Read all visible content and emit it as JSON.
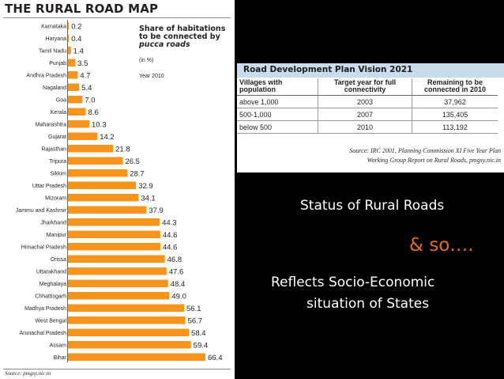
{
  "header": {
    "title": "THE RURAL ROAD MAP",
    "legend_lines": [
      "Share of habitations",
      "to be connected by",
      "pucca roads"
    ],
    "unit": "(in %)",
    "year": "Year 2010",
    "source": "Source: pmgsy.nic.in"
  },
  "colors": {
    "bar": "#f7941d",
    "panel": "#ffffff",
    "background": "#000000",
    "accent": "#e46c0a",
    "table_header": "#c9dcee"
  },
  "chart_data": {
    "type": "bar",
    "orientation": "horizontal",
    "title": "THE RURAL ROAD MAP",
    "subtitle": "Share of habitations to be connected by pucca roads (in %) Year 2010",
    "xlabel": "",
    "ylabel": "",
    "xlim": [
      0,
      66.4
    ],
    "grid": false,
    "categories": [
      "Karnataka",
      "Haryana",
      "Tamil Nadu",
      "Punjab",
      "Andhra Pradesh",
      "Nagaland",
      "Goa",
      "Kerala",
      "Maharashtra",
      "Gujarat",
      "Rajasthan",
      "Tripura",
      "Sikkim",
      "Uttar Pradesh",
      "Mizoram",
      "Jammu and Kashmir",
      "Jharkhand",
      "Manipur",
      "Himachal Pradesh",
      "Orissa",
      "Uttarakhand",
      "Meghalaya",
      "Chhattisgarh",
      "Madhya Pradesh",
      "West Bengal",
      "Arunachal Pradesh",
      "Assam",
      "Bihar"
    ],
    "values": [
      0.2,
      0.4,
      1.4,
      3.5,
      4.7,
      5.4,
      7.0,
      8.6,
      10.3,
      14.2,
      21.8,
      26.5,
      28.7,
      32.9,
      34.1,
      37.9,
      44.3,
      44.6,
      44.6,
      46.8,
      47.6,
      48.4,
      49.0,
      56.1,
      56.7,
      58.4,
      59.4,
      66.4
    ],
    "value_labels": [
      "0.2",
      "0.4",
      "1.4",
      "3.5",
      "4.7",
      "5.4",
      "7.0",
      "8.6",
      "10.3",
      "14.2",
      "21.8",
      "26.5",
      "28.7",
      "32.9",
      "34.1",
      "37.9",
      "44.3",
      "44.6",
      "44.6",
      "46.8",
      "47.6",
      "48.4",
      "49.0",
      "56.1",
      "56.7",
      "58.4",
      "59.4",
      "66.4"
    ]
  },
  "plan": {
    "title": "Road Development Plan Vision 2021",
    "headers": [
      "Villages with population",
      "Target year for full connectivity",
      "Remaining to be connected in 2010"
    ],
    "rows": [
      [
        "above 1,000",
        "2003",
        "37,962"
      ],
      [
        "500-1,000",
        "2007",
        "135,405"
      ],
      [
        "below 500",
        "2010",
        "113,192"
      ]
    ],
    "source_lines": [
      "Source: IRC 2001, Planning Commission XI Five Year Plan",
      "Working Group Report on Rural Roads, pmgsy.nic.in"
    ]
  },
  "captions": {
    "status": "Status of Rural Roads",
    "soso": "& so….",
    "reflects": "Reflects Socio-Economic",
    "situation": "situation of States"
  }
}
